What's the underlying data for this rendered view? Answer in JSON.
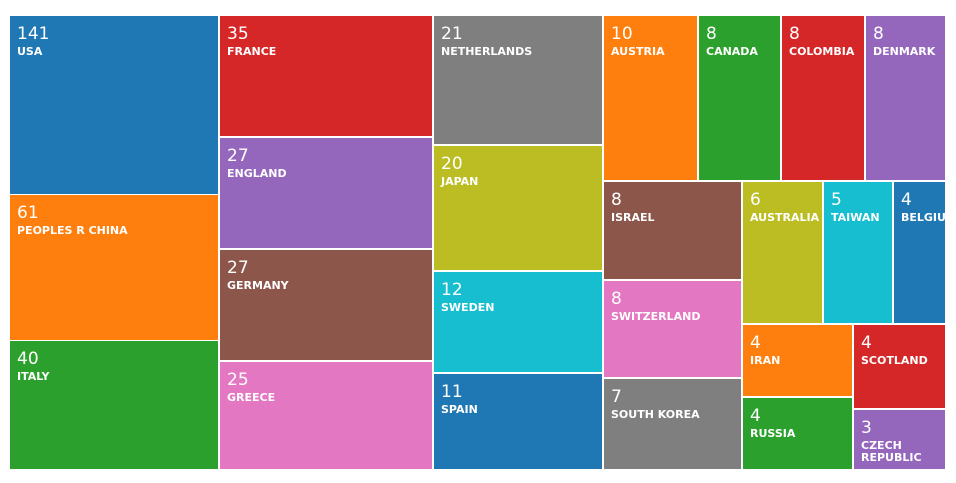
{
  "chart_data": {
    "type": "treemap",
    "categories": [
      "USA",
      "PEOPLES R CHINA",
      "ITALY",
      "FRANCE",
      "ENGLAND",
      "GERMANY",
      "GREECE",
      "NETHERLANDS",
      "JAPAN",
      "SWEDEN",
      "SPAIN",
      "AUSTRIA",
      "CANADA",
      "COLOMBIA",
      "DENMARK",
      "ISRAEL",
      "SWITZERLAND",
      "SOUTH KOREA",
      "AUSTRALIA",
      "TAIWAN",
      "BELGIUM",
      "IRAN",
      "RUSSIA",
      "SCOTLAND",
      "CZECH REPUBLIC"
    ],
    "values": [
      141,
      61,
      40,
      35,
      27,
      27,
      25,
      21,
      20,
      12,
      11,
      10,
      8,
      8,
      8,
      8,
      8,
      7,
      6,
      5,
      4,
      4,
      4,
      4,
      3
    ],
    "colors": [
      "#1f77b4",
      "#ff7f0e",
      "#2ca02c",
      "#d62728",
      "#9467bd",
      "#8c564b",
      "#e377c2",
      "#7f7f7f",
      "#bcbd22",
      "#17becf",
      "#1f77b4",
      "#ff7f0e",
      "#2ca02c",
      "#d62728",
      "#9467bd",
      "#8c564b",
      "#e377c2",
      "#7f7f7f",
      "#bcbd22",
      "#17becf",
      "#1f77b4",
      "#ff7f0e",
      "#2ca02c",
      "#d62728",
      "#9467bd"
    ]
  }
}
